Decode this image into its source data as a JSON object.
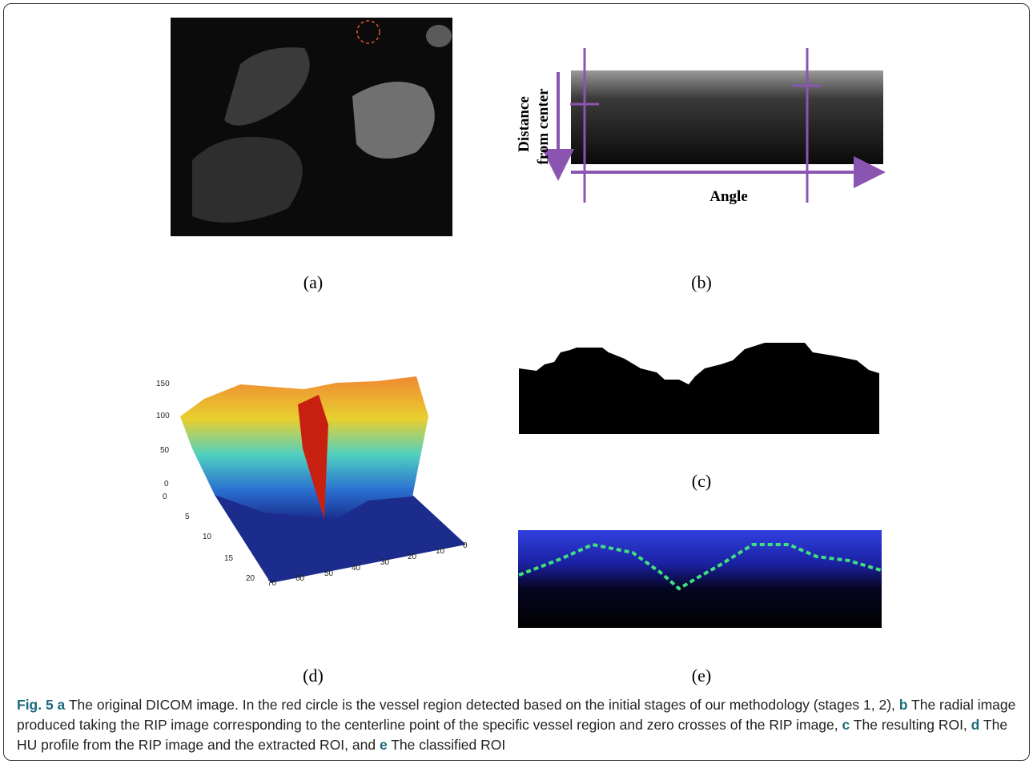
{
  "panels": {
    "a": "(a)",
    "b": "(b)",
    "c": "(c)",
    "d": "(d)",
    "e": "(e)"
  },
  "panel_b": {
    "y_axis_label": [
      "Distance",
      "from center"
    ],
    "x_axis_label": "Angle"
  },
  "panel_d": {
    "z_ticks": [
      150,
      100,
      50,
      0
    ],
    "y_ticks": [
      0,
      5,
      10,
      15,
      20
    ],
    "x_ticks": [
      70,
      60,
      50,
      40,
      30,
      20,
      10,
      0
    ]
  },
  "caption": [
    {
      "bold": "Fig. 5 a",
      "text": " The original DICOM image. In the red circle is the vessel region detected based on the initial stages of our methodology (stages 1, 2), "
    },
    {
      "bold": "b",
      "text": " The radial image produced taking the RIP image corresponding to the centerline point of the specific vessel region and zero crosses of the RIP image, "
    },
    {
      "bold": "c",
      "text": " The resulting ROI, "
    },
    {
      "bold": "d",
      "text": " The HU profile from the RIP image and the extracted ROI, and "
    },
    {
      "bold": "e",
      "text": " The classified ROI"
    }
  ]
}
